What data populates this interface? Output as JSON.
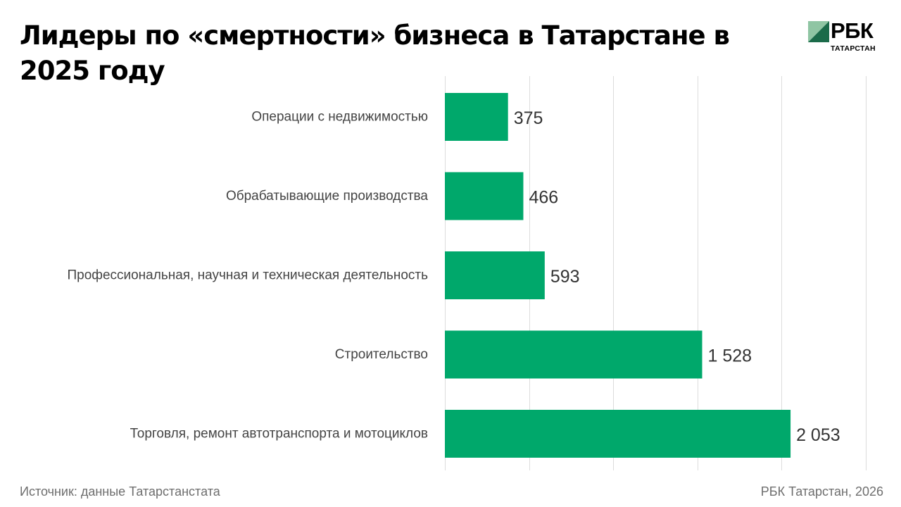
{
  "title": "Лидеры по «смертности» бизнеса в Татарстане в 2025 году",
  "logo": {
    "name": "РБК",
    "subtitle": "ТАТАРСТАН",
    "colors": {
      "mark_light": "#8fc5a3",
      "mark_dark": "#1b6b4a",
      "text": "#000000"
    }
  },
  "footer": {
    "source": "Источник: данные Татарстанстата",
    "credit": "РБК Татарстан, 2026"
  },
  "colors": {
    "bar": "#00a86b",
    "grid": "#dcdcdc",
    "category_label": "#444444",
    "value_label": "#333333"
  },
  "chart_data": {
    "type": "bar",
    "orientation": "horizontal",
    "title": "Лидеры по «смертности» бизнеса в Татарстане в 2025 году",
    "xlabel": "",
    "ylabel": "",
    "categories": [
      "Операции с недвижимостью",
      "Обрабатывающие производства",
      "Профессиональная, научная и техническая деятельность",
      "Строительство",
      "Торговля, ремонт автотранспорта и мотоциклов"
    ],
    "values": [
      375,
      466,
      593,
      1528,
      2053
    ],
    "value_labels": [
      "375",
      "466",
      "593",
      "1 528",
      "2 053"
    ],
    "xlim": [
      0,
      2500
    ],
    "grid": true,
    "legend": "none"
  }
}
